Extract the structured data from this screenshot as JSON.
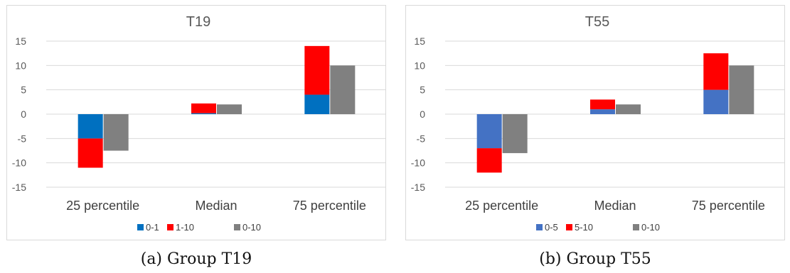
{
  "figures": [
    {
      "caption": "(a) Group T19",
      "chart_data": {
        "type": "bar",
        "title": "T19",
        "categories": [
          "25 percentile",
          "Median",
          "75 percentile"
        ],
        "ylim": [
          -15,
          15
        ],
        "yticks": [
          -15,
          -10,
          -5,
          0,
          5,
          10,
          15
        ],
        "grid": true,
        "legend_position": "bottom",
        "stack": {
          "series": [
            {
              "name": "0-1",
              "color": "#0070c0",
              "values": [
                -5,
                0.2,
                4
              ]
            },
            {
              "name": "1-10",
              "color": "#ff0000",
              "values": [
                -6,
                2,
                10
              ]
            }
          ]
        },
        "single": {
          "name": "0-10",
          "color": "#808080",
          "values": [
            -7.5,
            2,
            10
          ]
        }
      }
    },
    {
      "caption": "(b) Group T55",
      "chart_data": {
        "type": "bar",
        "title": "T55",
        "categories": [
          "25 percentile",
          "Median",
          "75 percentile"
        ],
        "ylim": [
          -15,
          15
        ],
        "yticks": [
          -15,
          -10,
          -5,
          0,
          5,
          10,
          15
        ],
        "grid": true,
        "legend_position": "bottom",
        "stack": {
          "series": [
            {
              "name": "0-5",
              "color": "#4472c4",
              "values": [
                -7,
                1,
                5
              ]
            },
            {
              "name": "5-10",
              "color": "#ff0000",
              "values": [
                -5,
                2,
                7.5
              ]
            }
          ]
        },
        "single": {
          "name": "0-10",
          "color": "#808080",
          "values": [
            -8,
            2,
            10
          ]
        }
      }
    }
  ]
}
